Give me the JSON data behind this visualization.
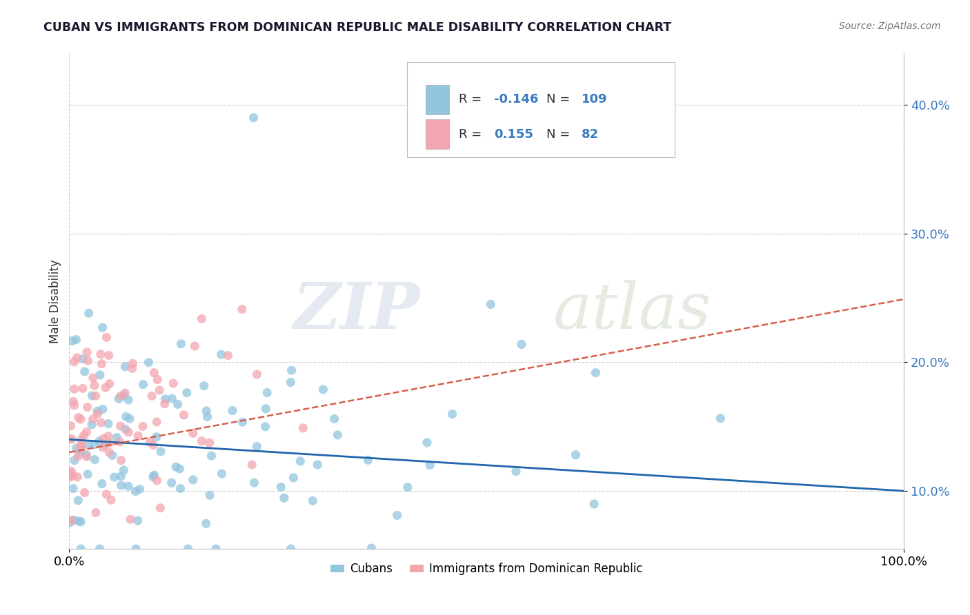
{
  "title": "CUBAN VS IMMIGRANTS FROM DOMINICAN REPUBLIC MALE DISABILITY CORRELATION CHART",
  "source": "Source: ZipAtlas.com",
  "ylabel": "Male Disability",
  "watermark_zip": "ZIP",
  "watermark_atlas": "atlas",
  "xlim": [
    0.0,
    1.0
  ],
  "ylim": [
    0.055,
    0.44
  ],
  "yticks": [
    0.1,
    0.2,
    0.3,
    0.4
  ],
  "ytick_labels": [
    "10.0%",
    "20.0%",
    "30.0%",
    "40.0%"
  ],
  "grid_color": "#cccccc",
  "background_color": "#ffffff",
  "cubans_color": "#92c5de",
  "dominican_color": "#f4a6b0",
  "cubans_line_color": "#2166ac",
  "dominican_line_color": "#d6604d",
  "R_cubans": -0.146,
  "N_cubans": 109,
  "R_dominican": 0.155,
  "N_dominican": 82,
  "legend_label_cubans": "Cubans",
  "legend_label_dominican": "Immigrants from Dominican Republic"
}
